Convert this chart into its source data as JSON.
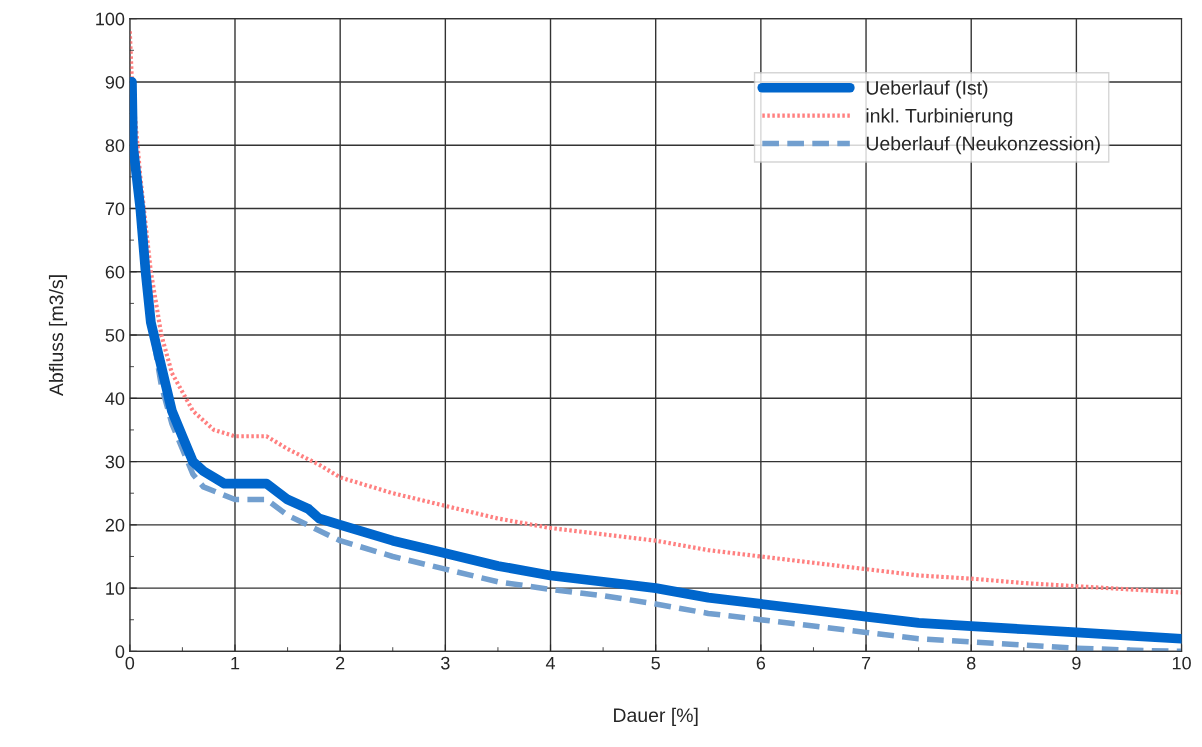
{
  "chart_data": {
    "type": "line",
    "xlabel": "Dauer [%]",
    "ylabel": "Abfluss [m3/s]",
    "xlim": [
      0,
      10
    ],
    "ylim": [
      0,
      100
    ],
    "xticks": [
      0,
      1,
      2,
      3,
      4,
      5,
      6,
      7,
      8,
      9,
      10
    ],
    "yticks": [
      0,
      10,
      20,
      30,
      40,
      50,
      60,
      70,
      80,
      90,
      100
    ],
    "grid": true,
    "legend": "top right",
    "series": [
      {
        "name": "Ueberlauf (Ist)",
        "color": "#0066cc",
        "line_style": "solid",
        "x": [
          0,
          0.02,
          0.03,
          0.1,
          0.15,
          0.2,
          0.3,
          0.4,
          0.5,
          0.6,
          0.7,
          0.9,
          1.0,
          1.3,
          1.5,
          1.7,
          1.8,
          2,
          2.5,
          3,
          3.5,
          4,
          4.5,
          5,
          5.5,
          6,
          6.5,
          7,
          7.5,
          8,
          8.5,
          9,
          9.5,
          10
        ],
        "values": [
          90,
          90,
          80,
          70,
          60,
          52,
          45,
          38,
          34,
          30,
          28.5,
          26.5,
          26.5,
          26.5,
          24,
          22.5,
          21,
          20,
          17.5,
          15.5,
          13.5,
          12,
          11,
          10,
          8.5,
          7.5,
          6.5,
          5.5,
          4.5,
          4,
          3.5,
          3,
          2.5,
          2
        ]
      },
      {
        "name": "inkl. Turbinierung",
        "color": "#ff8080",
        "line_style": "dotted",
        "x": [
          0,
          0.02,
          0.1,
          0.2,
          0.3,
          0.4,
          0.5,
          0.6,
          0.8,
          1.0,
          1.3,
          1.5,
          1.8,
          2,
          2.5,
          3,
          3.5,
          4,
          4.5,
          5,
          5.5,
          6,
          6.5,
          7,
          7.5,
          8,
          8.5,
          9,
          9.5,
          10
        ],
        "values": [
          98,
          90,
          75,
          60,
          50,
          44,
          41,
          38,
          35,
          34,
          34,
          32,
          29.5,
          27.5,
          25,
          23,
          21,
          19.5,
          18.5,
          17.5,
          16,
          15,
          14,
          13,
          12,
          11.5,
          10.8,
          10.3,
          9.8,
          9.3
        ]
      },
      {
        "name": "Ueberlauf (Neukonzession)",
        "color": "#729fcf",
        "line_style": "dashed",
        "x": [
          0,
          0.03,
          0.1,
          0.2,
          0.3,
          0.4,
          0.5,
          0.6,
          0.7,
          1.0,
          1.3,
          1.5,
          2,
          2.5,
          3,
          3.5,
          4,
          4.5,
          5,
          5.5,
          6,
          6.5,
          7,
          7.5,
          8,
          8.5,
          9,
          9.5,
          10
        ],
        "values": [
          88,
          80,
          70,
          52,
          42,
          36,
          32,
          28,
          26,
          24,
          24,
          21.5,
          17.5,
          15,
          13,
          11,
          9.8,
          8.8,
          7.5,
          6,
          5,
          4,
          3,
          2,
          1.5,
          1,
          0.5,
          0.2,
          0
        ]
      }
    ]
  }
}
